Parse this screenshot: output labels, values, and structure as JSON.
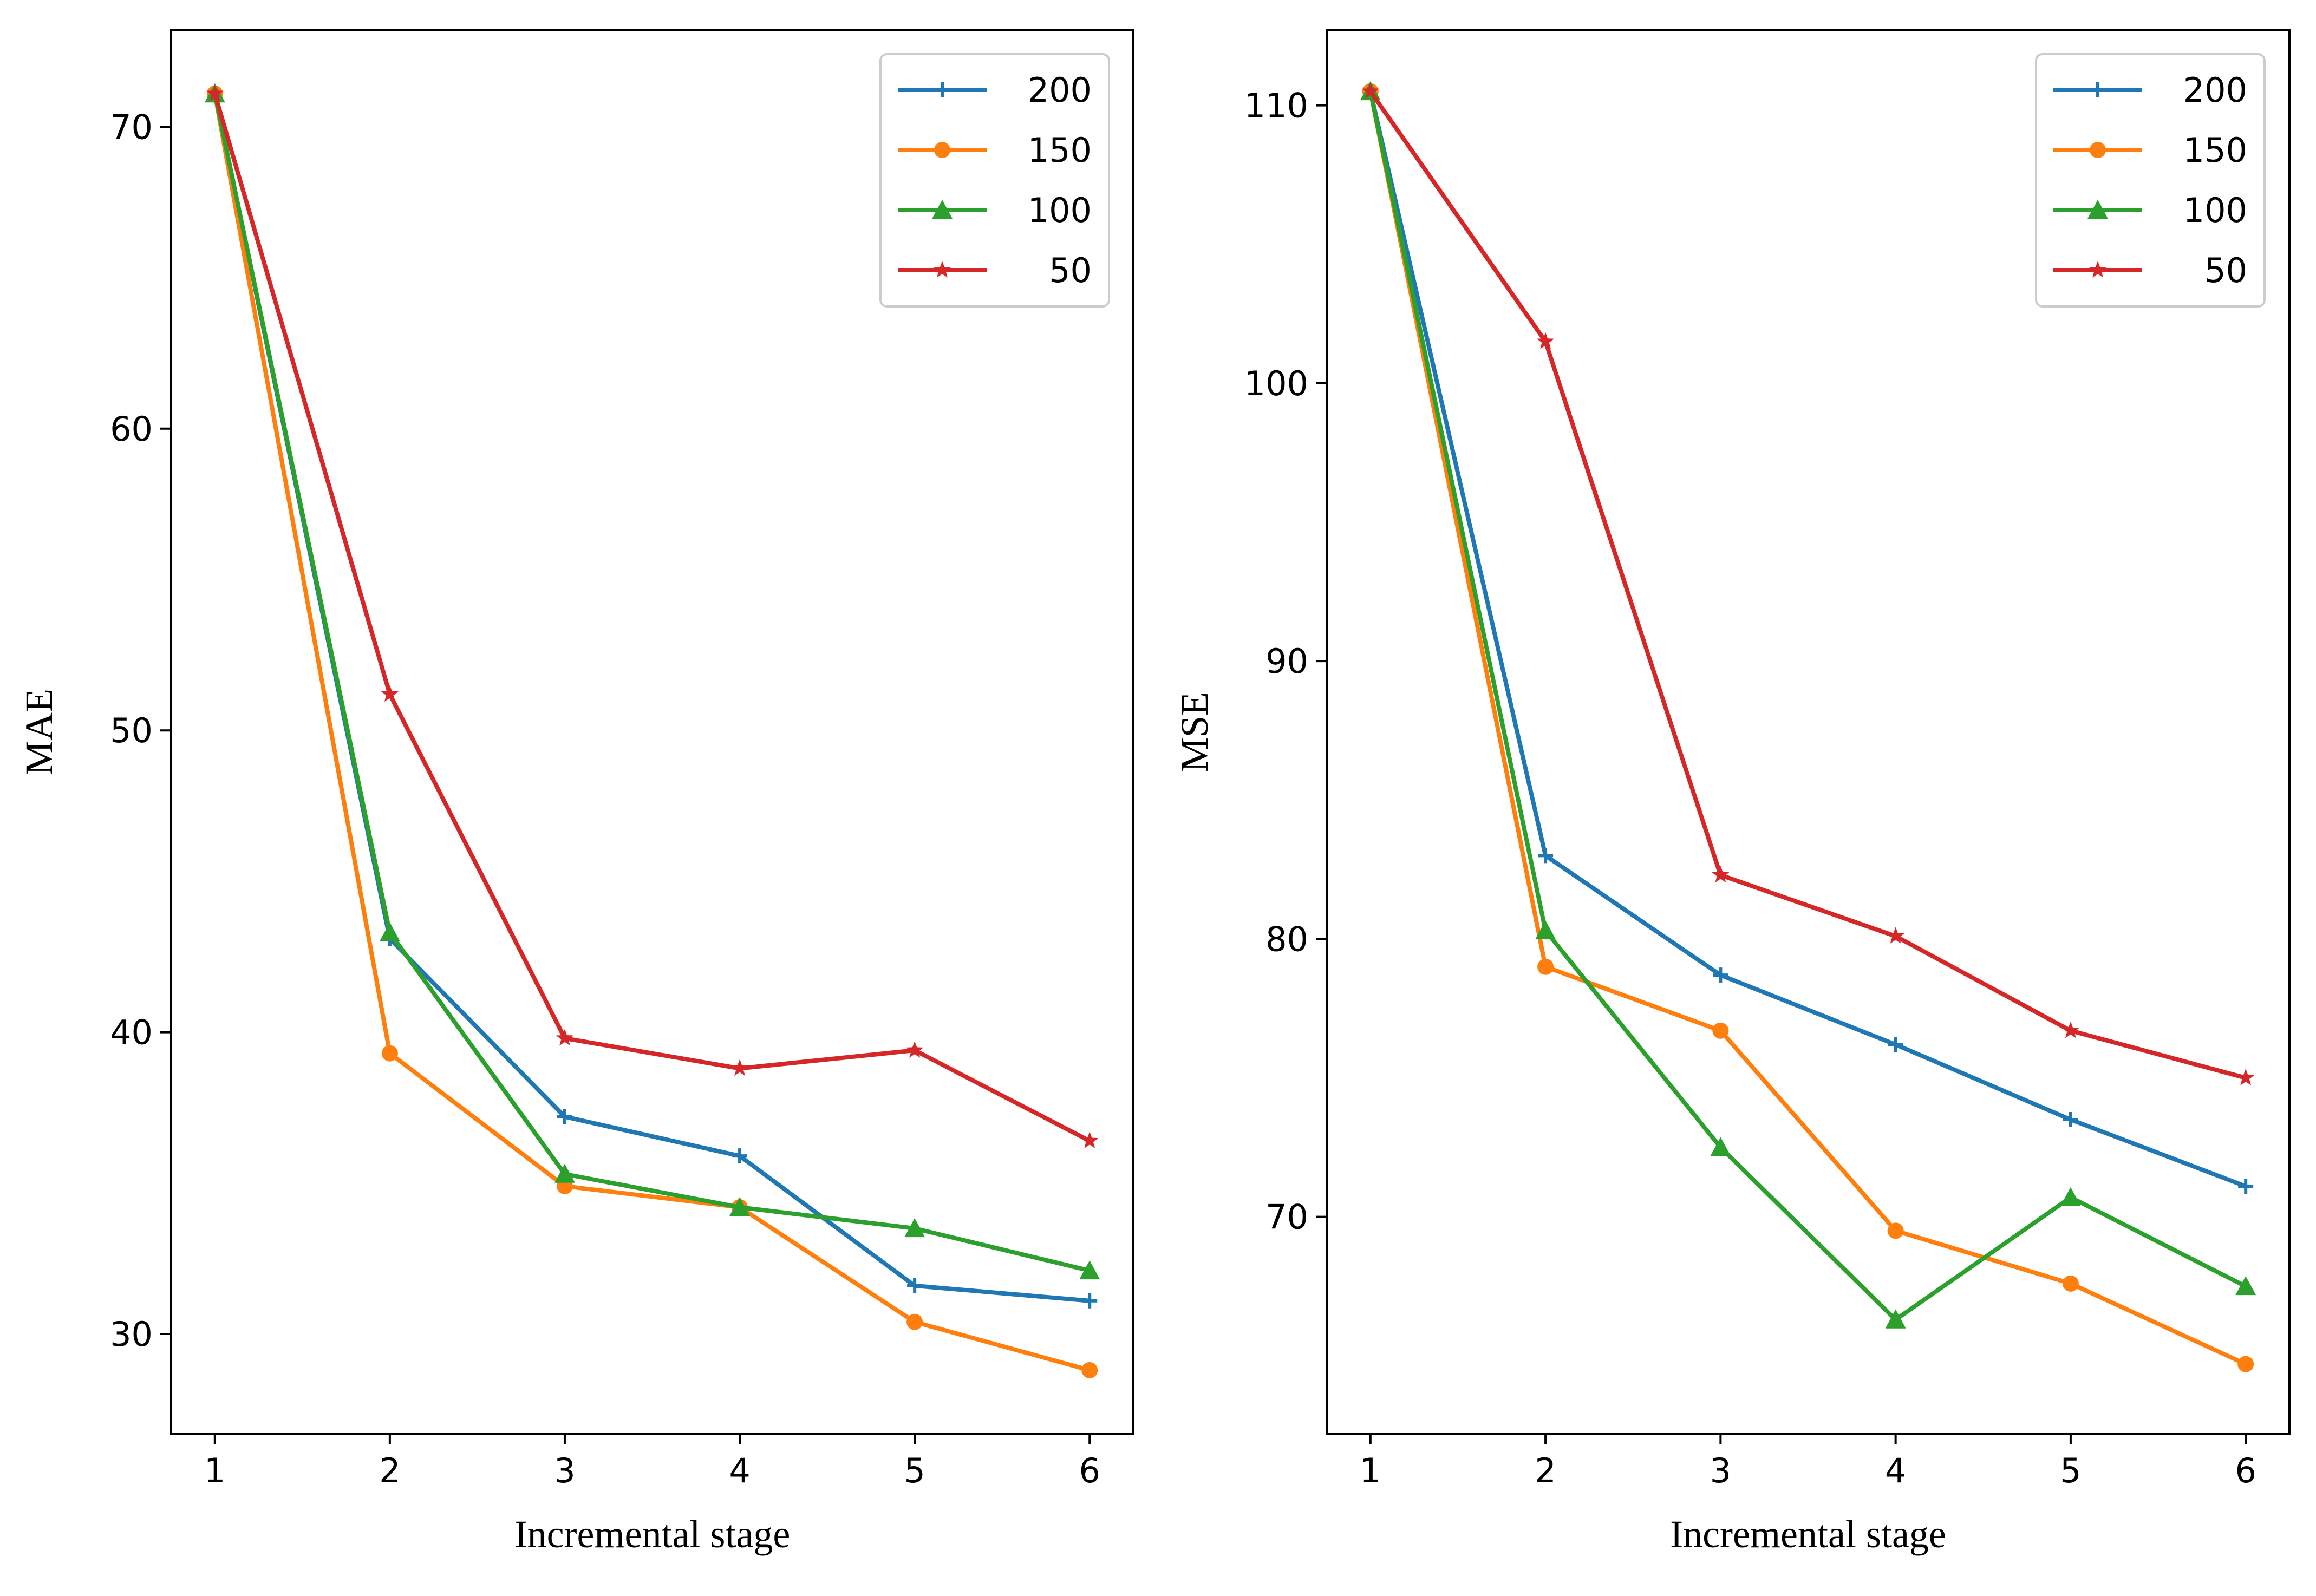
{
  "chart_data": [
    {
      "type": "line",
      "title": "",
      "xlabel": "Incremental stage",
      "ylabel": "MAE",
      "x": [
        1,
        2,
        3,
        4,
        5,
        6
      ],
      "xticks": [
        "1",
        "2",
        "3",
        "4",
        "5",
        "6"
      ],
      "yticks": [
        "30",
        "40",
        "50",
        "60",
        "70"
      ],
      "xlim": [
        0.75,
        6.25
      ],
      "ylim": [
        26.7,
        73.2
      ],
      "legend_position": "top-right",
      "series": [
        {
          "name": "200",
          "color": "#1f77b4",
          "marker": "plus",
          "values": [
            71.1,
            43.1,
            37.2,
            35.9,
            31.6,
            31.1
          ]
        },
        {
          "name": "150",
          "color": "#ff7f0e",
          "marker": "circle",
          "values": [
            71.1,
            39.3,
            34.9,
            34.2,
            30.4,
            28.8
          ]
        },
        {
          "name": "100",
          "color": "#2ca02c",
          "marker": "triangle",
          "values": [
            71.1,
            43.3,
            35.3,
            34.2,
            33.5,
            32.1
          ]
        },
        {
          "name": "50",
          "color": "#d62728",
          "marker": "star",
          "values": [
            71.1,
            51.2,
            39.8,
            38.8,
            39.4,
            36.4
          ]
        }
      ]
    },
    {
      "type": "line",
      "title": "",
      "xlabel": "Incremental stage",
      "ylabel": "MSE",
      "x": [
        1,
        2,
        3,
        4,
        5,
        6
      ],
      "xticks": [
        "1",
        "2",
        "3",
        "4",
        "5",
        "6"
      ],
      "yticks": [
        "70",
        "80",
        "90",
        "100",
        "110"
      ],
      "xlim": [
        0.75,
        6.25
      ],
      "ylim": [
        62.2,
        112.7
      ],
      "legend_position": "top-right",
      "series": [
        {
          "name": "200",
          "color": "#1f77b4",
          "marker": "plus",
          "values": [
            110.5,
            83.0,
            78.7,
            76.2,
            73.5,
            71.1
          ]
        },
        {
          "name": "150",
          "color": "#ff7f0e",
          "marker": "circle",
          "values": [
            110.5,
            79.0,
            76.7,
            69.5,
            67.6,
            64.7
          ]
        },
        {
          "name": "100",
          "color": "#2ca02c",
          "marker": "triangle",
          "values": [
            110.5,
            80.3,
            72.5,
            66.3,
            70.7,
            67.5
          ]
        },
        {
          "name": "50",
          "color": "#d62728",
          "marker": "star",
          "values": [
            110.5,
            101.5,
            82.3,
            80.1,
            76.7,
            75.0
          ]
        }
      ]
    }
  ]
}
